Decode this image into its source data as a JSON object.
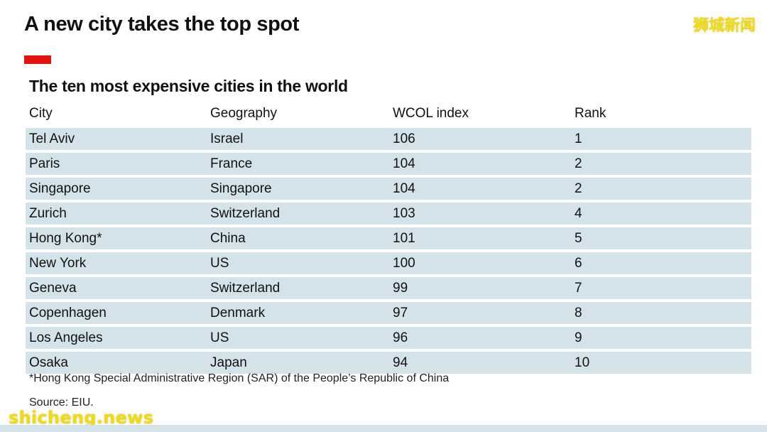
{
  "headline": "A new city takes the top spot",
  "watermark_top": "狮城新闻",
  "watermark_bottom": "shicheng.news",
  "colors": {
    "accent": "#e3120b",
    "row_fill": "#d4e3ea",
    "watermark": "#f3dc00"
  },
  "chart_data": {
    "type": "table",
    "title": "The ten most expensive cities in the world",
    "columns": [
      "City",
      "Geography",
      "WCOL index",
      "Rank"
    ],
    "rows": [
      [
        "Tel Aviv",
        "Israel",
        "106",
        "1"
      ],
      [
        "Paris",
        "France",
        "104",
        "2"
      ],
      [
        "Singapore",
        "Singapore",
        "104",
        "2"
      ],
      [
        "Zurich",
        "Switzerland",
        "103",
        "4"
      ],
      [
        "Hong Kong*",
        "China",
        "101",
        "5"
      ],
      [
        "New York",
        "US",
        "100",
        "6"
      ],
      [
        "Geneva",
        "Switzerland",
        "99",
        "7"
      ],
      [
        "Copenhagen",
        "Denmark",
        "97",
        "8"
      ],
      [
        "Los Angeles",
        "US",
        "96",
        "9"
      ],
      [
        "Osaka",
        "Japan",
        "94",
        "10"
      ]
    ],
    "footnote": "*Hong Kong Special Administrative Region (SAR) of the People’s Republic of China",
    "source": "Source: EIU."
  }
}
